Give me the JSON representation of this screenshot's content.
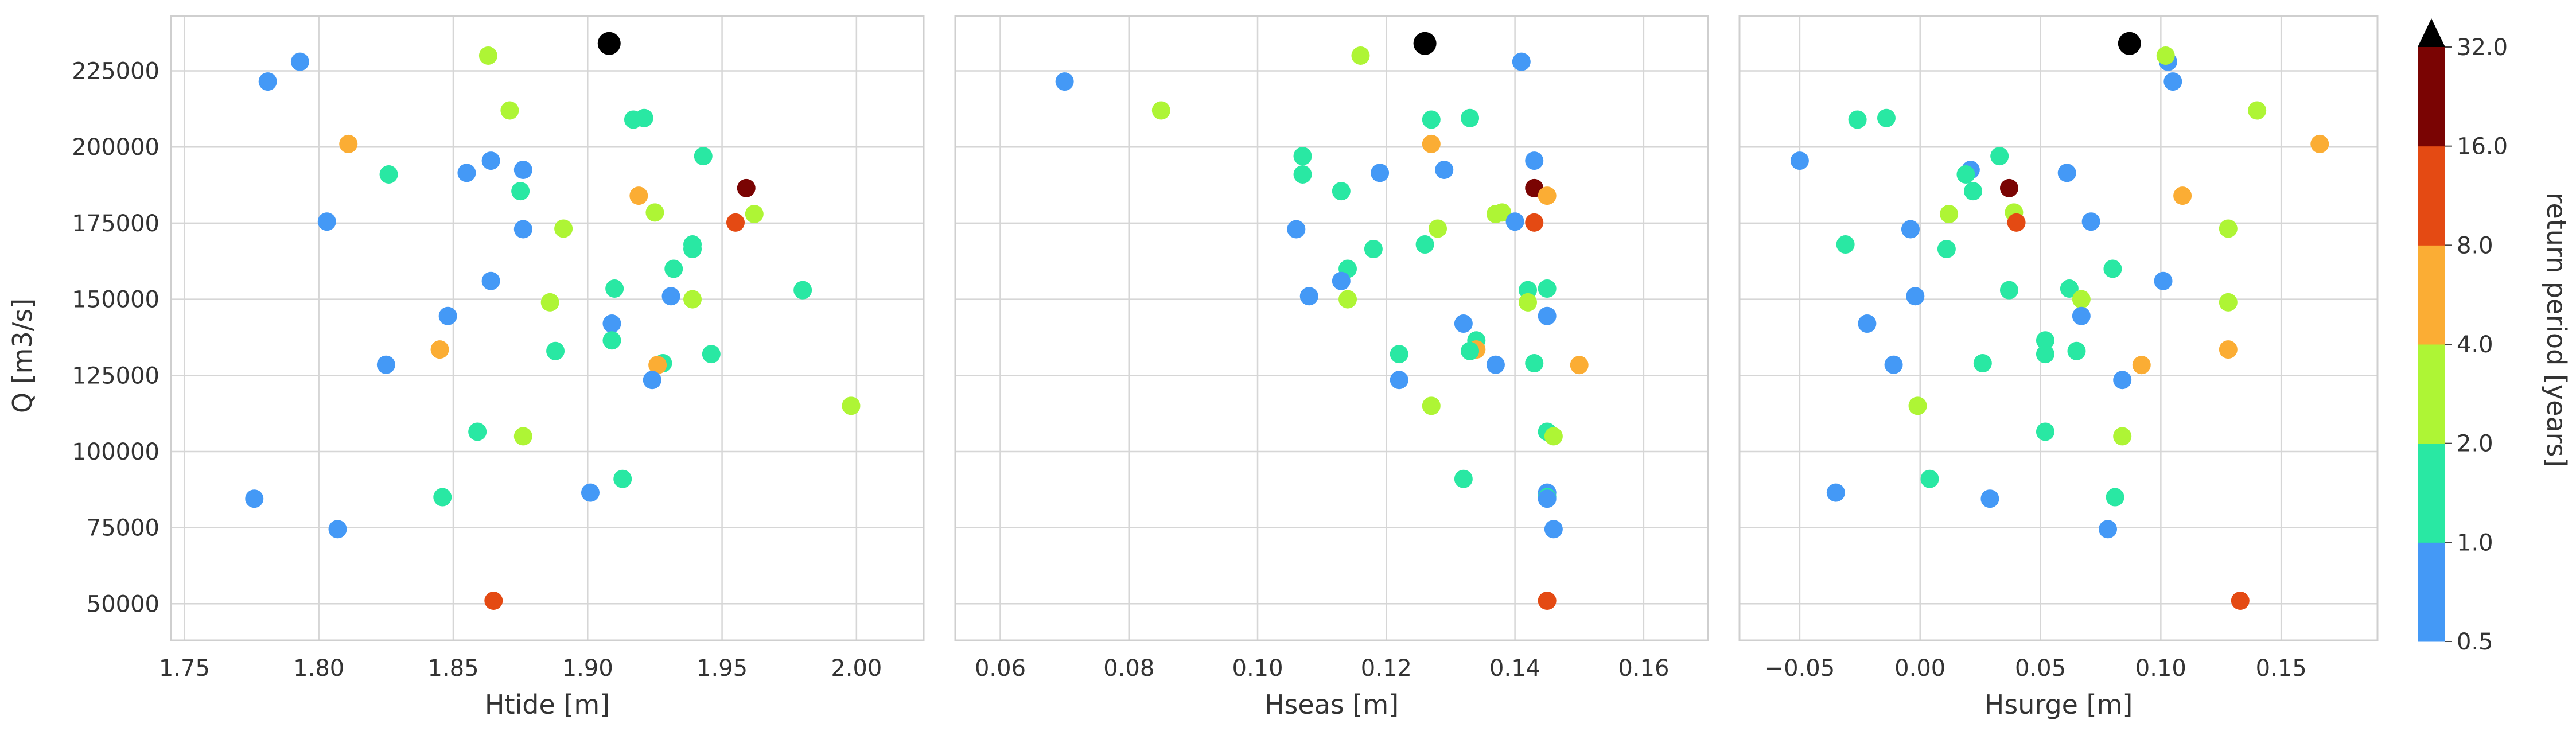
{
  "colors": {
    "grid": "#d6d6d6",
    "frame": "#cfcfcf",
    "max_event": "#000000"
  },
  "chart_data": {
    "type": "scatter",
    "y_label": "Q [m3/s]",
    "y_ticks": [
      "50000",
      "75000",
      "100000",
      "125000",
      "150000",
      "175000",
      "200000",
      "225000"
    ],
    "y_tick_values": [
      50000,
      75000,
      100000,
      125000,
      150000,
      175000,
      200000,
      225000
    ],
    "ylim": [
      38000,
      243000
    ],
    "grid": true,
    "colorbar": {
      "label": "return period [years]",
      "boundaries": [
        0.5,
        1.0,
        2.0,
        4.0,
        8.0,
        16.0,
        32.0
      ],
      "tick_labels": [
        "0.5",
        "1.0",
        "2.0",
        "4.0",
        "8.0",
        "16.0",
        "32.0"
      ],
      "colors": [
        "#4499f6",
        "#29e8a3",
        "#aef535",
        "#fbad34",
        "#e44a13",
        "#7a0403"
      ],
      "extend": "max"
    },
    "panels": [
      {
        "x_label": "Htide [m]",
        "xlim": [
          1.745,
          2.025
        ],
        "x_ticks": [
          "1.75",
          "1.80",
          "1.85",
          "1.90",
          "1.95",
          "2.00"
        ],
        "x_tick_values": [
          1.75,
          1.8,
          1.85,
          1.9,
          1.95,
          2.0
        ]
      },
      {
        "x_label": "Hseas [m]",
        "xlim": [
          0.053,
          0.17
        ],
        "x_ticks": [
          "0.06",
          "0.08",
          "0.10",
          "0.12",
          "0.14",
          "0.16"
        ],
        "x_tick_values": [
          0.06,
          0.08,
          0.1,
          0.12,
          0.14,
          0.16
        ]
      },
      {
        "x_label": "Hsurge [m]",
        "xlim": [
          -0.075,
          0.19
        ],
        "x_ticks": [
          "−0.05",
          "0.00",
          "0.05",
          "0.10",
          "0.15"
        ],
        "x_tick_values": [
          -0.05,
          0.0,
          0.05,
          0.1,
          0.15
        ]
      }
    ],
    "events": [
      {
        "q": 234000,
        "htide": 1.908,
        "hseas": 0.126,
        "hsurge": 0.087,
        "rp_class": -1
      },
      {
        "q": 228000,
        "htide": 1.793,
        "hseas": 0.141,
        "hsurge": 0.103,
        "rp_class": 0
      },
      {
        "q": 221500,
        "htide": 1.781,
        "hseas": 0.07,
        "hsurge": 0.105,
        "rp_class": 0
      },
      {
        "q": 230000,
        "htide": 1.863,
        "hseas": 0.116,
        "hsurge": 0.102,
        "rp_class": 2
      },
      {
        "q": 212000,
        "htide": 1.871,
        "hseas": 0.085,
        "hsurge": 0.14,
        "rp_class": 2
      },
      {
        "q": 209000,
        "htide": 1.917,
        "hseas": 0.127,
        "hsurge": -0.026,
        "rp_class": 1
      },
      {
        "q": 209500,
        "htide": 1.921,
        "hseas": 0.133,
        "hsurge": -0.014,
        "rp_class": 1
      },
      {
        "q": 201000,
        "htide": 1.811,
        "hseas": 0.127,
        "hsurge": 0.166,
        "rp_class": 3
      },
      {
        "q": 197000,
        "htide": 1.943,
        "hseas": 0.107,
        "hsurge": 0.033,
        "rp_class": 1
      },
      {
        "q": 195500,
        "htide": 1.864,
        "hseas": 0.143,
        "hsurge": -0.05,
        "rp_class": 0
      },
      {
        "q": 192500,
        "htide": 1.876,
        "hseas": 0.129,
        "hsurge": 0.021,
        "rp_class": 0
      },
      {
        "q": 191500,
        "htide": 1.855,
        "hseas": 0.119,
        "hsurge": 0.061,
        "rp_class": 0
      },
      {
        "q": 191000,
        "htide": 1.826,
        "hseas": 0.107,
        "hsurge": 0.019,
        "rp_class": 1
      },
      {
        "q": 186500,
        "htide": 1.959,
        "hseas": 0.143,
        "hsurge": 0.037,
        "rp_class": 5
      },
      {
        "q": 185500,
        "htide": 1.875,
        "hseas": 0.113,
        "hsurge": 0.022,
        "rp_class": 1
      },
      {
        "q": 184000,
        "htide": 1.919,
        "hseas": 0.145,
        "hsurge": 0.109,
        "rp_class": 3
      },
      {
        "q": 178500,
        "htide": 1.925,
        "hseas": 0.138,
        "hsurge": 0.039,
        "rp_class": 2
      },
      {
        "q": 178000,
        "htide": 1.962,
        "hseas": 0.137,
        "hsurge": 0.012,
        "rp_class": 2
      },
      {
        "q": 175500,
        "htide": 1.803,
        "hseas": 0.14,
        "hsurge": 0.071,
        "rp_class": 0
      },
      {
        "q": 175200,
        "htide": 1.955,
        "hseas": 0.143,
        "hsurge": 0.04,
        "rp_class": 4
      },
      {
        "q": 173000,
        "htide": 1.876,
        "hseas": 0.106,
        "hsurge": -0.004,
        "rp_class": 0
      },
      {
        "q": 173200,
        "htide": 1.891,
        "hseas": 0.128,
        "hsurge": 0.128,
        "rp_class": 2
      },
      {
        "q": 168000,
        "htide": 1.939,
        "hseas": 0.126,
        "hsurge": -0.031,
        "rp_class": 1
      },
      {
        "q": 166500,
        "htide": 1.939,
        "hseas": 0.118,
        "hsurge": 0.011,
        "rp_class": 1
      },
      {
        "q": 160000,
        "htide": 1.932,
        "hseas": 0.114,
        "hsurge": 0.08,
        "rp_class": 1
      },
      {
        "q": 156000,
        "htide": 1.864,
        "hseas": 0.113,
        "hsurge": 0.101,
        "rp_class": 0
      },
      {
        "q": 153500,
        "htide": 1.91,
        "hseas": 0.145,
        "hsurge": 0.062,
        "rp_class": 1
      },
      {
        "q": 153000,
        "htide": 1.98,
        "hseas": 0.142,
        "hsurge": 0.037,
        "rp_class": 1
      },
      {
        "q": 151000,
        "htide": 1.931,
        "hseas": 0.108,
        "hsurge": -0.002,
        "rp_class": 0
      },
      {
        "q": 150000,
        "htide": 1.939,
        "hseas": 0.114,
        "hsurge": 0.067,
        "rp_class": 2
      },
      {
        "q": 149000,
        "htide": 1.886,
        "hseas": 0.142,
        "hsurge": 0.128,
        "rp_class": 2
      },
      {
        "q": 144500,
        "htide": 1.848,
        "hseas": 0.145,
        "hsurge": 0.067,
        "rp_class": 0
      },
      {
        "q": 142000,
        "htide": 1.909,
        "hseas": 0.132,
        "hsurge": -0.022,
        "rp_class": 0
      },
      {
        "q": 136500,
        "htide": 1.909,
        "hseas": 0.134,
        "hsurge": 0.052,
        "rp_class": 1
      },
      {
        "q": 133500,
        "htide": 1.845,
        "hseas": 0.134,
        "hsurge": 0.128,
        "rp_class": 3
      },
      {
        "q": 133000,
        "htide": 1.888,
        "hseas": 0.133,
        "hsurge": 0.065,
        "rp_class": 1
      },
      {
        "q": 132000,
        "htide": 1.946,
        "hseas": 0.122,
        "hsurge": 0.052,
        "rp_class": 1
      },
      {
        "q": 129000,
        "htide": 1.928,
        "hseas": 0.143,
        "hsurge": 0.026,
        "rp_class": 1
      },
      {
        "q": 128500,
        "htide": 1.825,
        "hseas": 0.137,
        "hsurge": -0.011,
        "rp_class": 0
      },
      {
        "q": 128400,
        "htide": 1.926,
        "hseas": 0.15,
        "hsurge": 0.092,
        "rp_class": 3
      },
      {
        "q": 123500,
        "htide": 1.924,
        "hseas": 0.122,
        "hsurge": 0.084,
        "rp_class": 0
      },
      {
        "q": 115000,
        "htide": 1.998,
        "hseas": 0.127,
        "hsurge": -0.001,
        "rp_class": 2
      },
      {
        "q": 106500,
        "htide": 1.859,
        "hseas": 0.145,
        "hsurge": 0.052,
        "rp_class": 1
      },
      {
        "q": 105000,
        "htide": 1.876,
        "hseas": 0.146,
        "hsurge": 0.084,
        "rp_class": 2
      },
      {
        "q": 91000,
        "htide": 1.913,
        "hseas": 0.132,
        "hsurge": 0.004,
        "rp_class": 1
      },
      {
        "q": 86500,
        "htide": 1.901,
        "hseas": 0.145,
        "hsurge": -0.035,
        "rp_class": 0
      },
      {
        "q": 85000,
        "htide": 1.846,
        "hseas": 0.145,
        "hsurge": 0.081,
        "rp_class": 1
      },
      {
        "q": 84500,
        "htide": 1.776,
        "hseas": 0.145,
        "hsurge": 0.029,
        "rp_class": 0
      },
      {
        "q": 74500,
        "htide": 1.807,
        "hseas": 0.146,
        "hsurge": 0.078,
        "rp_class": 0
      },
      {
        "q": 51000,
        "htide": 1.865,
        "hseas": 0.145,
        "hsurge": 0.133,
        "rp_class": 4
      }
    ]
  }
}
